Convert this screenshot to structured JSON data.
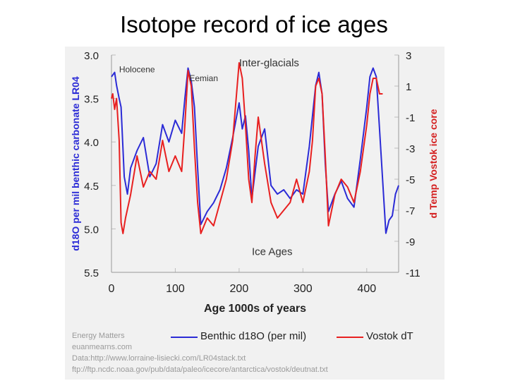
{
  "slide": {
    "title": "Isotope record of ice ages"
  },
  "chart_data": {
    "type": "line",
    "xlabel": "Age 1000s of years",
    "ylabel_left": "d18O per mil benthic carbonate LR04",
    "ylabel_right": "d Temp Vostok ice core",
    "xlim": [
      0,
      450
    ],
    "ylim_left": [
      5.5,
      3.0
    ],
    "ylim_right": [
      -11,
      3
    ],
    "x_ticks": [
      "0",
      "100",
      "200",
      "300",
      "400"
    ],
    "x_tick_values": [
      0,
      100,
      200,
      300,
      400
    ],
    "y_left_ticks": [
      "3.0",
      "3.5",
      "4.0",
      "4.5",
      "5.0",
      "5.5"
    ],
    "y_left_tick_values": [
      3.0,
      3.5,
      4.0,
      4.5,
      5.0,
      5.5
    ],
    "y_right_ticks": [
      "3",
      "1",
      "-1",
      "-3",
      "-5",
      "-7",
      "-9",
      "-11"
    ],
    "y_right_tick_values": [
      3,
      1,
      -1,
      -3,
      -5,
      -7,
      -9,
      -11
    ],
    "series": [
      {
        "name": "Benthic d18O (per mil)",
        "axis": "left",
        "color": "#2b2bd6",
        "x": [
          0,
          5,
          8,
          12,
          15,
          20,
          25,
          30,
          35,
          40,
          50,
          60,
          70,
          80,
          90,
          100,
          110,
          115,
          120,
          125,
          130,
          135,
          140,
          150,
          160,
          170,
          180,
          190,
          200,
          205,
          210,
          215,
          220,
          225,
          230,
          240,
          250,
          260,
          270,
          280,
          290,
          300,
          310,
          315,
          320,
          325,
          330,
          335,
          340,
          350,
          360,
          370,
          380,
          390,
          400,
          405,
          410,
          415,
          420,
          425,
          430,
          435,
          440,
          445,
          450
        ],
        "y": [
          3.25,
          3.2,
          3.35,
          3.5,
          3.6,
          4.4,
          4.6,
          4.3,
          4.2,
          4.1,
          3.95,
          4.4,
          4.25,
          3.8,
          4.0,
          3.75,
          3.9,
          3.5,
          3.15,
          3.3,
          3.6,
          4.3,
          4.95,
          4.8,
          4.7,
          4.55,
          4.3,
          3.95,
          3.55,
          3.85,
          3.7,
          4.1,
          4.65,
          4.35,
          4.05,
          3.85,
          4.5,
          4.6,
          4.55,
          4.65,
          4.55,
          4.6,
          4.05,
          3.7,
          3.35,
          3.2,
          3.45,
          4.25,
          4.8,
          4.6,
          4.45,
          4.65,
          4.75,
          4.2,
          3.6,
          3.25,
          3.15,
          3.25,
          3.85,
          4.45,
          5.05,
          4.9,
          4.85,
          4.6,
          4.5
        ]
      },
      {
        "name": "Vostok dT",
        "axis": "right",
        "color": "#e82020",
        "x": [
          0,
          2,
          5,
          8,
          12,
          15,
          18,
          22,
          30,
          40,
          50,
          60,
          70,
          80,
          90,
          100,
          110,
          115,
          120,
          125,
          130,
          135,
          140,
          150,
          160,
          170,
          180,
          190,
          200,
          205,
          210,
          215,
          220,
          225,
          230,
          240,
          250,
          260,
          270,
          280,
          290,
          300,
          310,
          315,
          320,
          325,
          330,
          335,
          340,
          350,
          360,
          370,
          380,
          390,
          400,
          405,
          410,
          415,
          420,
          425
        ],
        "y": [
          0.2,
          0.5,
          -0.5,
          0.2,
          -2.5,
          -7.8,
          -8.5,
          -7.5,
          -6.0,
          -3.5,
          -5.5,
          -4.5,
          -5.0,
          -2.5,
          -4.5,
          -3.5,
          -4.5,
          -1.5,
          2.0,
          1.0,
          -3.0,
          -6.5,
          -8.5,
          -7.5,
          -8.0,
          -6.5,
          -5.0,
          -2.5,
          2.5,
          1.5,
          -1.5,
          -5.0,
          -6.5,
          -3.5,
          -1.0,
          -4.0,
          -6.5,
          -7.5,
          -7.0,
          -6.5,
          -5.0,
          -6.5,
          -4.5,
          -2.5,
          1.0,
          1.5,
          0.5,
          -3.5,
          -8.0,
          -6.0,
          -5.0,
          -5.5,
          -6.5,
          -4.5,
          -1.5,
          0.5,
          1.5,
          1.5,
          0.5,
          0.5
        ]
      }
    ],
    "annotations": [
      {
        "text": "Holocene",
        "x": 12,
        "y_left": 3.2,
        "color": "#333333"
      },
      {
        "text": "Eemian",
        "x": 122,
        "y_left": 3.3,
        "color": "#333333"
      },
      {
        "text": "Inter-glacials",
        "x": 200,
        "y_left": 3.13,
        "color": "#333333"
      },
      {
        "text": "Ice Ages",
        "x": 220,
        "y_left": 5.3,
        "color": "#333333"
      }
    ]
  },
  "credits": {
    "line1": "Energy Matters",
    "line2": "euanmearns.com",
    "line3": "Data:http://www.lorraine-lisiecki.com/LR04stack.txt",
    "line4": "ftp://ftp.ncdc.noaa.gov/pub/data/paleo/icecore/antarctica/vostok/deutnat.txt"
  },
  "colors": {
    "blue": "#2b2bd6",
    "red": "#e82020",
    "axis_left_label": "#2b2bd6",
    "axis_right_label": "#d42020",
    "gridline": "#bdbdbd"
  }
}
